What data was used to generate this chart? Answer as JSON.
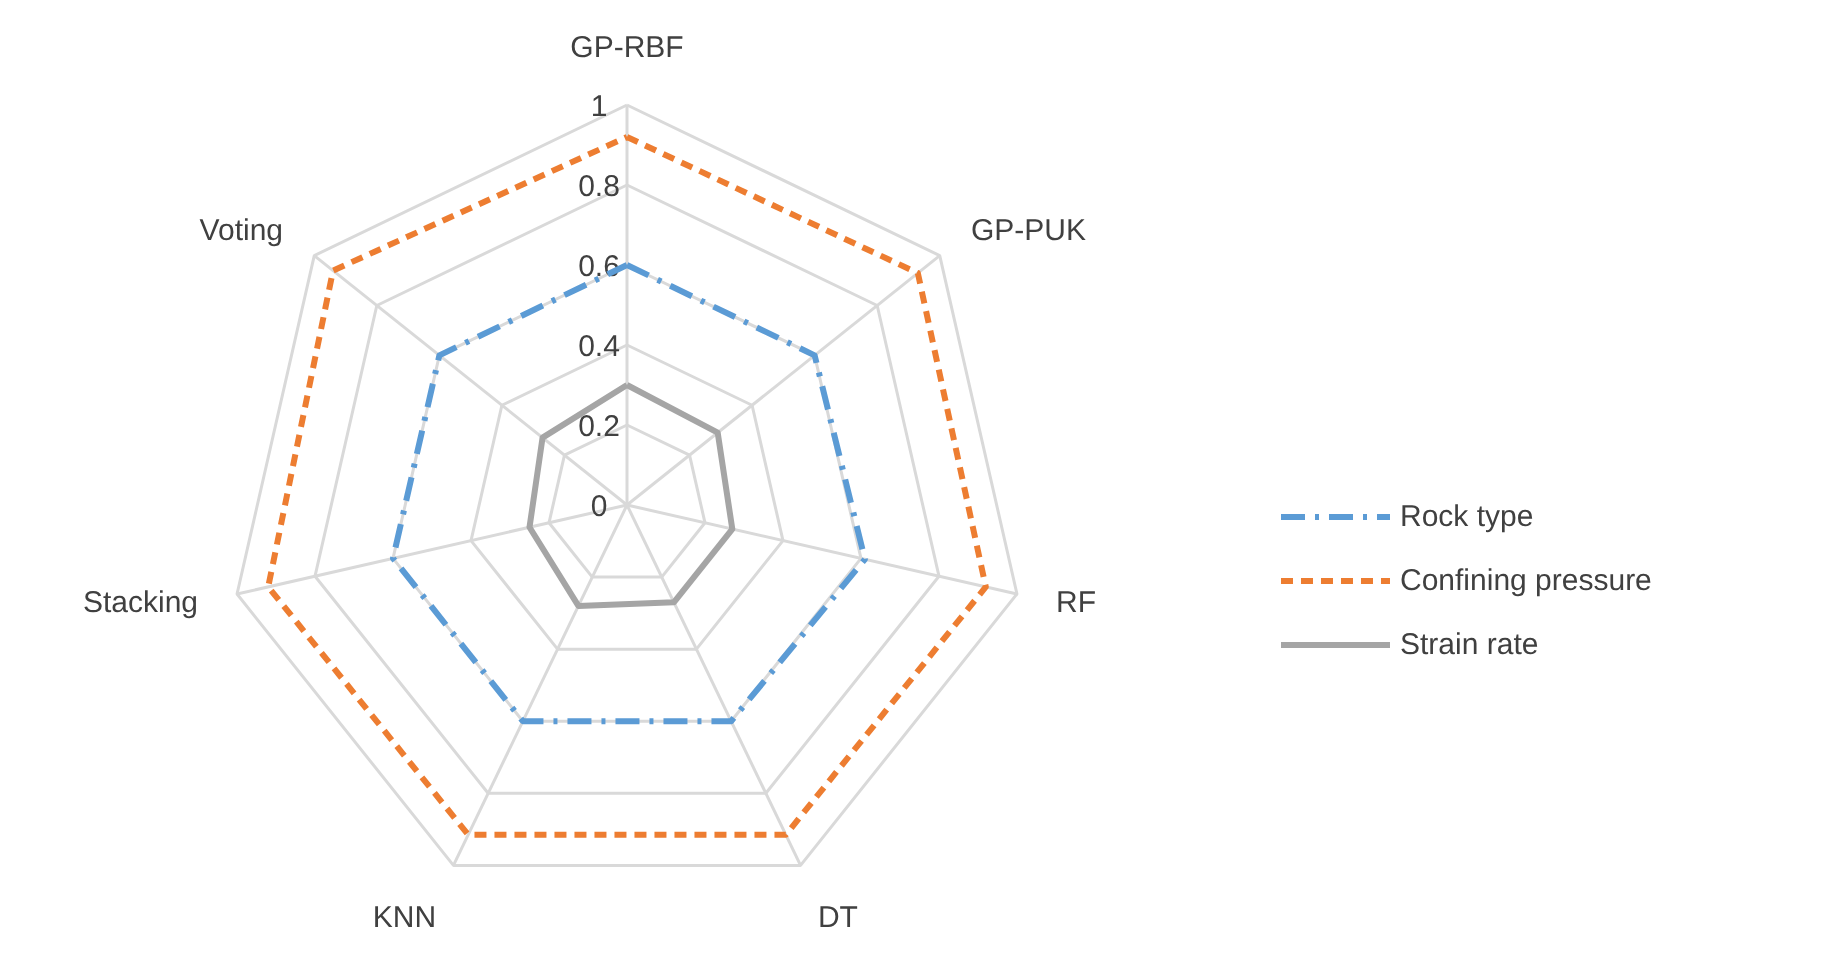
{
  "chart_data": {
    "type": "radar",
    "categories": [
      "GP-RBF",
      "GP-PUK",
      "RF",
      "DT",
      "KNN",
      "Stacking",
      "Voting"
    ],
    "ylim": [
      0,
      1
    ],
    "yticks": [
      0,
      0.2,
      0.4,
      0.6,
      0.8,
      1
    ],
    "grid": true,
    "legend": "right",
    "series": [
      {
        "name": "Rock type",
        "color": "#5b9bd5",
        "line_style": "dashdot",
        "values": [
          0.6,
          0.6,
          0.61,
          0.6,
          0.6,
          0.6,
          0.6
        ]
      },
      {
        "name": "Confining pressure",
        "color": "#ed7d31",
        "line_style": "dashed",
        "values": [
          0.92,
          0.93,
          0.92,
          0.915,
          0.915,
          0.92,
          0.94
        ]
      },
      {
        "name": "Strain rate",
        "color": "#a5a5a5",
        "line_style": "solid",
        "values": [
          0.3,
          0.29,
          0.27,
          0.27,
          0.28,
          0.25,
          0.27
        ]
      }
    ]
  }
}
